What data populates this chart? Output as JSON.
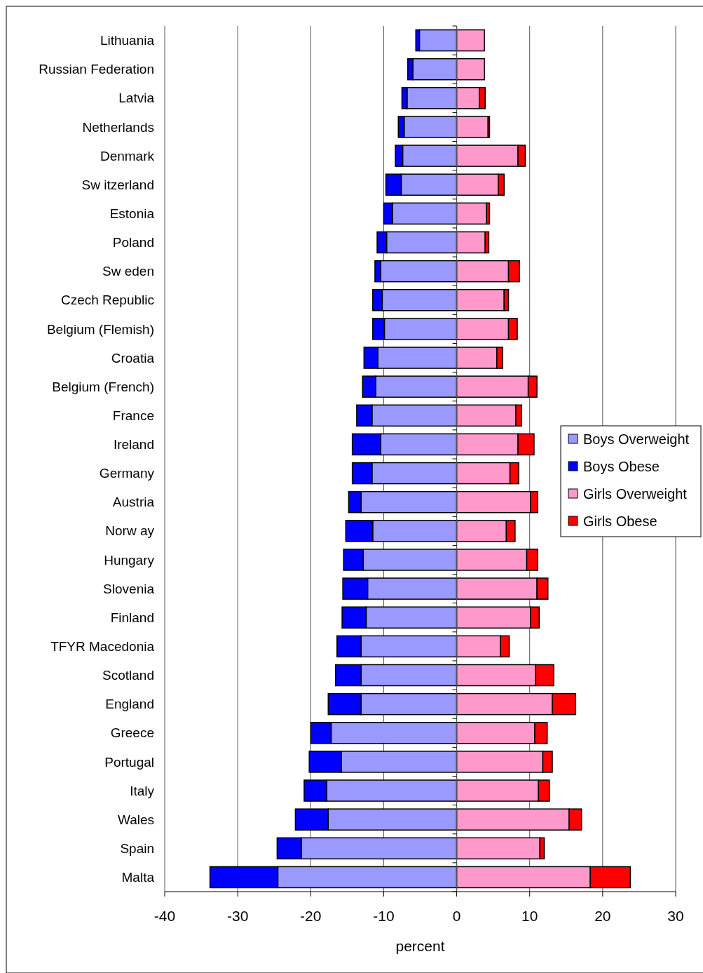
{
  "chart_data": {
    "type": "bar",
    "orientation": "horizontal",
    "stacked": true,
    "xlabel": "percent",
    "categories": [
      "Lithuania",
      "Russian Federation",
      "Latvia",
      "Netherlands",
      "Denmark",
      "Sw itzerland",
      "Estonia",
      "Poland",
      "Sw eden",
      "Czech Republic",
      "Belgium (Flemish)",
      "Croatia",
      "Belgium (French)",
      "France",
      "Ireland",
      "Germany",
      "Austria",
      "Norw ay",
      "Hungary",
      "Slovenia",
      "Finland",
      "TFYR Macedonia",
      "Scotland",
      "England",
      "Greece",
      "Portugal",
      "Italy",
      "Wales",
      "Spain",
      "Malta"
    ],
    "series": [
      {
        "name": "Boys Overweight",
        "color": "#9999ff",
        "values": [
          -5.1,
          -6.0,
          -6.8,
          -7.2,
          -7.4,
          -7.6,
          -8.8,
          -9.6,
          -10.4,
          -10.2,
          -9.9,
          -10.8,
          -11.1,
          -11.6,
          -10.4,
          -11.6,
          -13.1,
          -11.5,
          -12.8,
          -12.2,
          -12.4,
          -13.1,
          -13.1,
          -13.1,
          -17.2,
          -15.8,
          -17.8,
          -17.6,
          -21.3,
          -24.5
        ]
      },
      {
        "name": "Boys Obese",
        "color": "#0000ff",
        "values": [
          -0.5,
          -0.7,
          -0.7,
          -0.8,
          -1.0,
          -2.1,
          -1.2,
          -1.3,
          -0.8,
          -1.3,
          -1.6,
          -1.9,
          -1.8,
          -2.1,
          -3.9,
          -2.7,
          -1.7,
          -3.7,
          -2.7,
          -3.4,
          -3.3,
          -3.3,
          -3.5,
          -4.5,
          -2.8,
          -4.4,
          -3.1,
          -4.5,
          -3.3,
          -9.3
        ]
      },
      {
        "name": "Girls Overweight",
        "color": "#ff99cc",
        "values": [
          3.8,
          3.8,
          3.1,
          4.3,
          8.4,
          5.7,
          4.1,
          3.9,
          7.1,
          6.5,
          7.1,
          5.5,
          9.8,
          8.1,
          8.4,
          7.3,
          10.1,
          6.8,
          9.6,
          11.0,
          10.1,
          6.0,
          10.8,
          13.1,
          10.7,
          11.8,
          11.2,
          15.4,
          11.4,
          18.3
        ]
      },
      {
        "name": "Girls Obese",
        "color": "#ff0000",
        "values": [
          0,
          0,
          0.8,
          0.2,
          1.0,
          0.8,
          0.4,
          0.5,
          1.5,
          0.6,
          1.2,
          0.8,
          1.2,
          0.8,
          2.2,
          1.2,
          1.0,
          1.2,
          1.5,
          1.5,
          1.2,
          1.2,
          2.5,
          3.2,
          1.7,
          1.3,
          1.5,
          1.7,
          0.6,
          5.5
        ]
      }
    ],
    "xlim": [
      -40,
      30
    ],
    "xticks": [
      -40,
      -30,
      -20,
      -10,
      0,
      10,
      20,
      30
    ],
    "grid": "x",
    "legend": "right"
  }
}
